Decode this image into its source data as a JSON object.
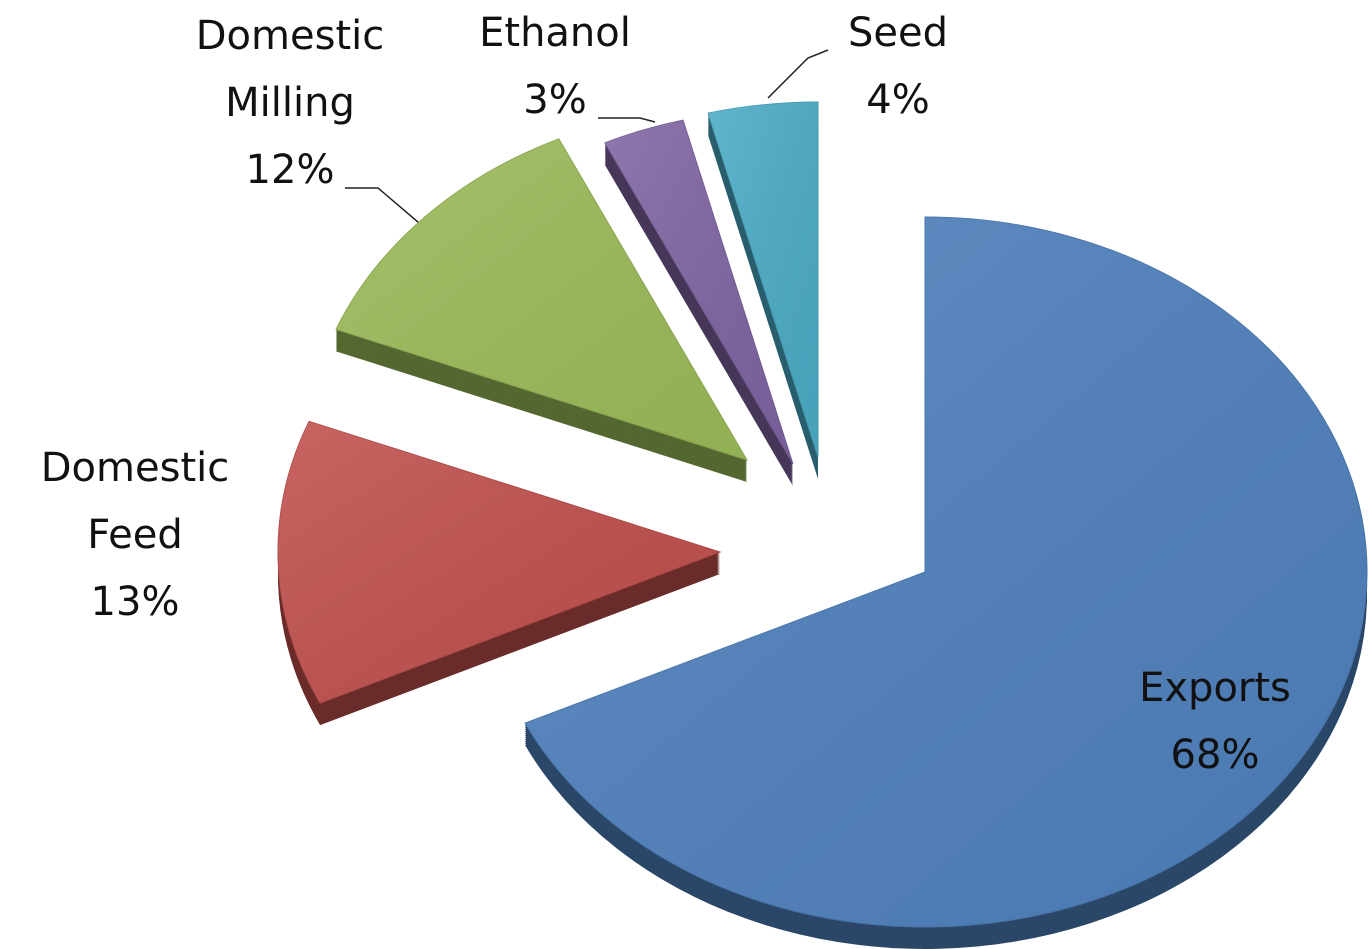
{
  "chart_data": {
    "type": "pie",
    "categories": [
      "Exports",
      "Domestic Feed",
      "Domestic Milling",
      "Ethanol",
      "Seed"
    ],
    "values": [
      68,
      13,
      12,
      3,
      4
    ],
    "value_labels": [
      "68%",
      "13%",
      "12%",
      "3%",
      "4%"
    ],
    "colors": [
      "#4f81bd",
      "#c0504d",
      "#9bbb59",
      "#8064a2",
      "#4bacc6"
    ]
  }
}
